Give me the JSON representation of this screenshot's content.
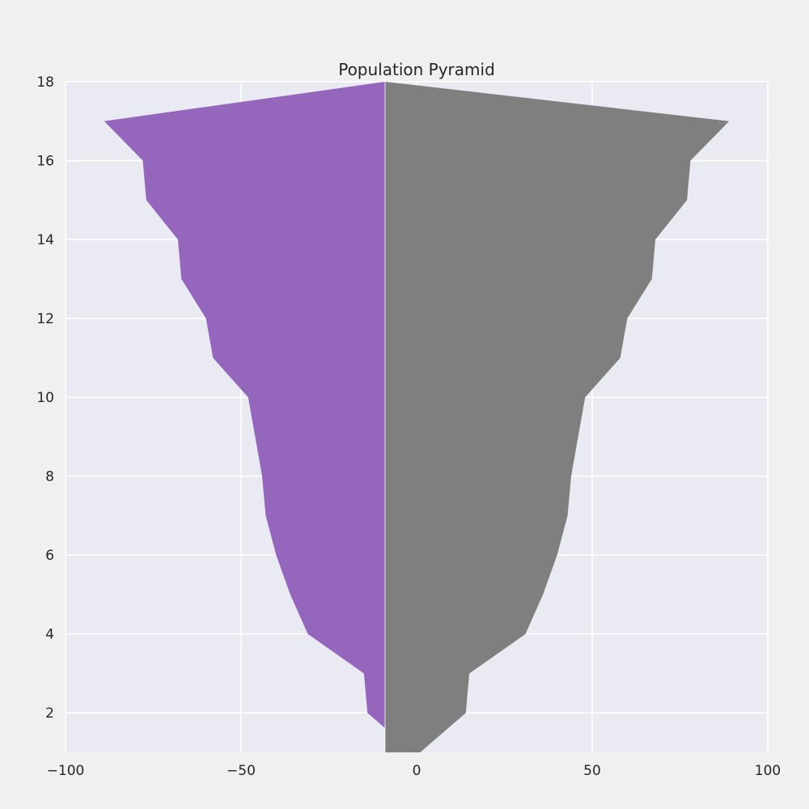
{
  "chart_data": {
    "type": "area",
    "title": "Population Pyramid",
    "xlabel": "",
    "ylabel": "",
    "orientation": "horizontal",
    "baseline_x": -9,
    "y": [
      1,
      2,
      3,
      4,
      5,
      6,
      7,
      8,
      9,
      10,
      11,
      12,
      13,
      14,
      15,
      16,
      17,
      18
    ],
    "series": [
      {
        "color": "#9467bd",
        "values": [
          -9,
          -14,
          -15,
          -31,
          -36,
          -40,
          -43,
          -44,
          -46,
          -48,
          -58,
          -60,
          -67,
          -68,
          -77,
          -78,
          -89,
          -9
        ]
      },
      {
        "color": "#7f7f7f",
        "values": [
          -9,
          14,
          15,
          31,
          36,
          40,
          43,
          44,
          46,
          48,
          58,
          60,
          67,
          68,
          77,
          78,
          89,
          -9
        ]
      }
    ],
    "series_end_point": [
      -1,
      1
    ],
    "xlim": [
      -100,
      100
    ],
    "ylim": [
      1,
      18
    ],
    "xticks": [
      -100,
      -50,
      0,
      50,
      100
    ],
    "xtick_labels": [
      "−100",
      "−50",
      "0",
      "50",
      "100"
    ],
    "yticks": [
      2,
      4,
      6,
      8,
      10,
      12,
      14,
      16,
      18
    ],
    "ytick_labels": [
      "2",
      "4",
      "6",
      "8",
      "10",
      "12",
      "14",
      "16",
      "18"
    ],
    "grid": true,
    "plot_background": "#eaeaf2",
    "grid_color": "#ffffff"
  }
}
